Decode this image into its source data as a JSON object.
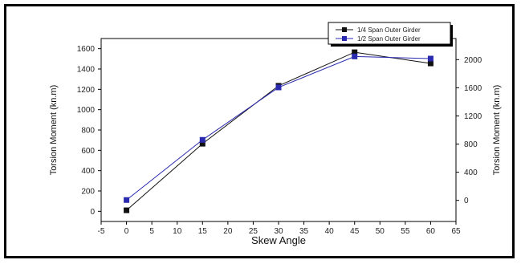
{
  "chart_data": {
    "type": "line",
    "title": "",
    "xlabel": "Skew Angle",
    "ylabel_left": "Torsion Moment (kn.m)",
    "ylabel_right": "Torsion Moment (kn.m)",
    "xlim": [
      -5,
      65
    ],
    "ylim_left": [
      -100,
      1700
    ],
    "ylim_right": [
      -300,
      2300
    ],
    "x_ticks": [
      -5,
      0,
      5,
      10,
      15,
      20,
      25,
      30,
      35,
      40,
      45,
      50,
      55,
      60,
      65
    ],
    "y_ticks_left": [
      0,
      200,
      400,
      600,
      800,
      1000,
      1200,
      1400,
      1600
    ],
    "y_ticks_right": [
      0,
      400,
      800,
      1200,
      1600,
      2000
    ],
    "legend_position": "top-right",
    "grid": false,
    "series": [
      {
        "name": "1/4 Span Outer Girder",
        "axis": "left",
        "color": "#111111",
        "x": [
          0,
          15,
          30,
          45,
          60
        ],
        "y": [
          10,
          665,
          1235,
          1565,
          1455
        ]
      },
      {
        "name": "1/2 Span Outer Girder",
        "axis": "right",
        "color": "#2a2ab0",
        "x": [
          0,
          15,
          30,
          45,
          60
        ],
        "y": [
          5,
          860,
          1605,
          2045,
          2015
        ]
      }
    ]
  }
}
